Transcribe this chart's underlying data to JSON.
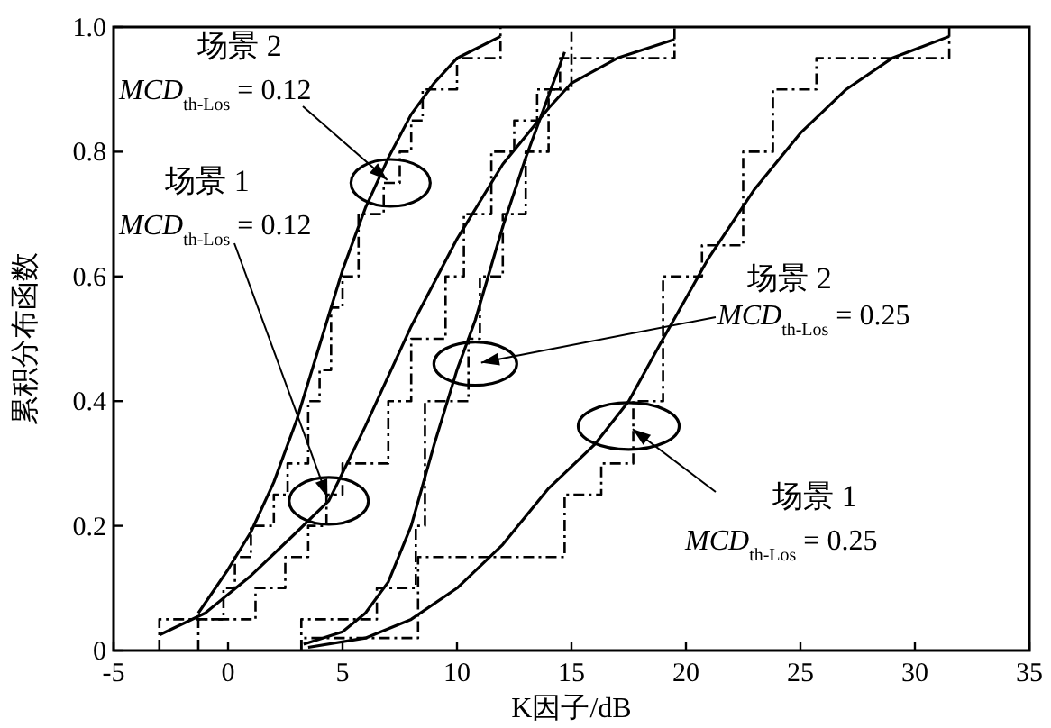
{
  "chart_data": {
    "type": "line",
    "xlabel": "K因子/dB",
    "ylabel": "累积分布函数",
    "xlim": [
      -5,
      35
    ],
    "xticks": [
      -5,
      0,
      5,
      10,
      15,
      20,
      25,
      30,
      35
    ],
    "ylim": [
      0,
      1
    ],
    "yticks": [
      0,
      0.2,
      0.4,
      0.6,
      0.8,
      {
        "value": 1,
        "label": "1.0"
      }
    ],
    "grid": false,
    "series": [
      {
        "color": "#000000",
        "line_style": "solid",
        "x": [
          -1.3,
          0,
          1,
          2,
          3,
          4,
          5,
          6,
          7,
          8,
          9,
          10,
          11.9
        ],
        "values": [
          0.06,
          0.13,
          0.19,
          0.27,
          0.37,
          0.49,
          0.61,
          0.71,
          0.79,
          0.86,
          0.91,
          0.95,
          0.985
        ]
      },
      {
        "color": "#000000",
        "line_style": "solid",
        "x": [
          -3,
          -1,
          1,
          3,
          4.4,
          6,
          8,
          10,
          12,
          14,
          15,
          17,
          19.5
        ],
        "values": [
          0.025,
          0.06,
          0.12,
          0.19,
          0.24,
          0.36,
          0.52,
          0.66,
          0.78,
          0.87,
          0.91,
          0.95,
          0.98
        ]
      },
      {
        "color": "#000000",
        "line_style": "solid",
        "x": [
          3.3,
          5,
          6,
          7,
          8,
          9,
          10,
          10.8,
          12,
          13,
          14,
          14.7
        ],
        "values": [
          0.01,
          0.03,
          0.06,
          0.11,
          0.2,
          0.33,
          0.45,
          0.53,
          0.68,
          0.79,
          0.89,
          0.96
        ]
      },
      {
        "color": "#000000",
        "line_style": "solid",
        "x": [
          3.5,
          6,
          8,
          10,
          12,
          14,
          16,
          17.5,
          19,
          21,
          23,
          25,
          27,
          29,
          31.5
        ],
        "values": [
          0.005,
          0.02,
          0.05,
          0.1,
          0.17,
          0.26,
          0.33,
          0.4,
          0.5,
          0.63,
          0.74,
          0.83,
          0.9,
          0.95,
          0.985
        ]
      },
      {
        "type": "step",
        "color": "#000000",
        "line_style": "dashdot",
        "x": [
          -1.3,
          -1.3,
          -0.2,
          0.3,
          1,
          2,
          2.6,
          3.5,
          4,
          4.5,
          5,
          5.7,
          6.8,
          7.5,
          8,
          8.5,
          10,
          11.9
        ],
        "values": [
          0,
          0.05,
          0.1,
          0.15,
          0.2,
          0.25,
          0.3,
          0.4,
          0.45,
          0.55,
          0.6,
          0.7,
          0.75,
          0.8,
          0.85,
          0.9,
          0.95,
          1
        ]
      },
      {
        "type": "step",
        "color": "#000000",
        "line_style": "dashdot",
        "x": [
          -3,
          -3,
          1.2,
          2.5,
          3.5,
          4.3,
          5,
          7,
          8,
          9.5,
          10.3,
          11.5,
          12.5,
          13.5,
          14.5,
          19.5
        ],
        "values": [
          0,
          0.05,
          0.1,
          0.15,
          0.2,
          0.25,
          0.3,
          0.4,
          0.5,
          0.6,
          0.7,
          0.8,
          0.85,
          0.9,
          0.95,
          1
        ]
      },
      {
        "type": "step",
        "color": "#000000",
        "line_style": "dashdot",
        "x": [
          3.2,
          3.2,
          6.5,
          8.2,
          8.6,
          10.5,
          11,
          12,
          13,
          14,
          15
        ],
        "values": [
          0,
          0.05,
          0.1,
          0.2,
          0.4,
          0.5,
          0.6,
          0.7,
          0.8,
          0.9,
          1
        ]
      },
      {
        "type": "step",
        "color": "#000000",
        "line_style": "dashdot",
        "x": [
          3.2,
          3.2,
          8.3,
          14.7,
          16.3,
          17.7,
          19,
          20.7,
          22.5,
          23.8,
          25.7,
          31.5
        ],
        "values": [
          0,
          0.02,
          0.15,
          0.25,
          0.3,
          0.4,
          0.6,
          0.65,
          0.8,
          0.9,
          0.95,
          1
        ]
      }
    ],
    "annotations": [
      {
        "text": "场景 2\nMCD$_{th-Los}$ = 0.12",
        "x": 7.1,
        "y": 0.75
      },
      {
        "text": "场景 1\nMCD$_{th-Los}$ = 0.12",
        "x": 4.4,
        "y": 0.24
      },
      {
        "text": "场景 2\nMCD$_{th-Los}$ = 0.25",
        "x": 10.8,
        "y": 0.46
      },
      {
        "text": "场景 1\nMCD$_{th-Los}$ = 0.25",
        "x": 17.5,
        "y": 0.36
      }
    ]
  }
}
